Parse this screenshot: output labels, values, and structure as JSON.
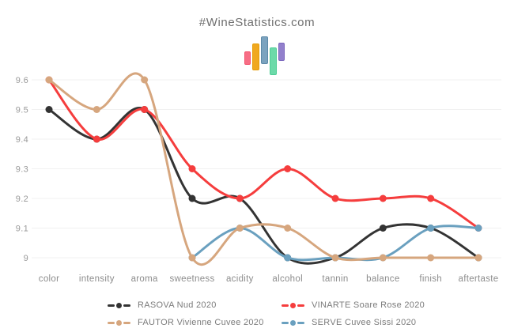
{
  "page": {
    "title": "#WineStatistics.com"
  },
  "logo": {
    "bars": [
      {
        "name": "pink-bar",
        "fill": "#f76d85",
        "border": "#f2536f"
      },
      {
        "name": "orange-bar",
        "fill": "#f0a81f",
        "border": "#e59d08"
      },
      {
        "name": "blue-bar",
        "fill": "#7ba3bf",
        "border": "#5c89a8"
      },
      {
        "name": "green-bar",
        "fill": "#6cdaa9",
        "border": "#4ecd95"
      },
      {
        "name": "purple-bar",
        "fill": "#9280cc",
        "border": "#7a66bd"
      }
    ]
  },
  "chart_data": {
    "type": "line",
    "title": "#WineStatistics.com",
    "categories": [
      "color",
      "intensity",
      "aroma",
      "sweetness",
      "acidity",
      "alcohol",
      "tannin",
      "balance",
      "finish",
      "aftertaste"
    ],
    "xlabel": "",
    "ylabel": "",
    "ylim": [
      9.0,
      9.6
    ],
    "grid": true,
    "legend_position": "bottom",
    "yticks": [
      {
        "value": 9.6,
        "label": "9.6"
      },
      {
        "value": 9.5,
        "label": "9.5"
      },
      {
        "value": 9.4,
        "label": "9.4"
      },
      {
        "value": 9.3,
        "label": "9.3"
      },
      {
        "value": 9.2,
        "label": "9.2"
      },
      {
        "value": 9.1,
        "label": "9.1"
      },
      {
        "value": 9.0,
        "label": "9"
      }
    ],
    "series": [
      {
        "name": "RASOVA Nud 2020",
        "color": "#333333",
        "values": [
          9.5,
          9.4,
          9.5,
          9.2,
          9.2,
          9.0,
          9.0,
          9.1,
          9.1,
          9.0
        ]
      },
      {
        "name": "VINARTE Soare Rose 2020",
        "color": "#f53d3d",
        "values": [
          9.6,
          9.4,
          9.5,
          9.3,
          9.2,
          9.3,
          9.2,
          9.2,
          9.2,
          9.1
        ]
      },
      {
        "name": "FAUTOR Vivienne Cuvee 2020",
        "color": "#d6a67e",
        "values": [
          9.6,
          9.5,
          9.6,
          9.0,
          9.1,
          9.1,
          9.0,
          9.0,
          9.0,
          9.0
        ]
      },
      {
        "name": "SERVE Cuvee Sissi 2020",
        "color": "#6aa0bf",
        "values": [
          null,
          null,
          null,
          9.0,
          9.1,
          9.0,
          9.0,
          9.0,
          9.1,
          9.1
        ]
      }
    ],
    "draw_order": [
      0,
      1,
      3,
      2
    ],
    "colors": {
      "gridline": "#f1f1f1",
      "ytick_text": "#999999",
      "xtick_text": "#8c8c8c"
    }
  }
}
